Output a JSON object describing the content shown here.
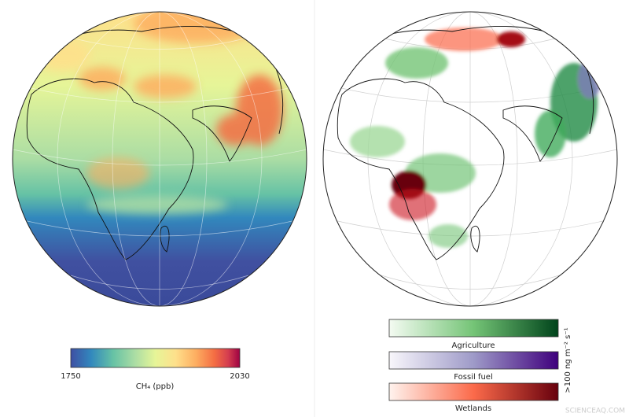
{
  "left_panel": {
    "colorbar": {
      "min_label": "1750",
      "max_label": "2030",
      "label": "CH₄ (ppb)"
    }
  },
  "right_panel": {
    "colorbars": [
      {
        "label": "Agriculture"
      },
      {
        "label": "Fossil fuel"
      },
      {
        "label": "Wetlands"
      }
    ],
    "unit_label": ">100 ng m⁻² s⁻¹"
  },
  "watermark": "SCIENCEAQ.COM"
}
